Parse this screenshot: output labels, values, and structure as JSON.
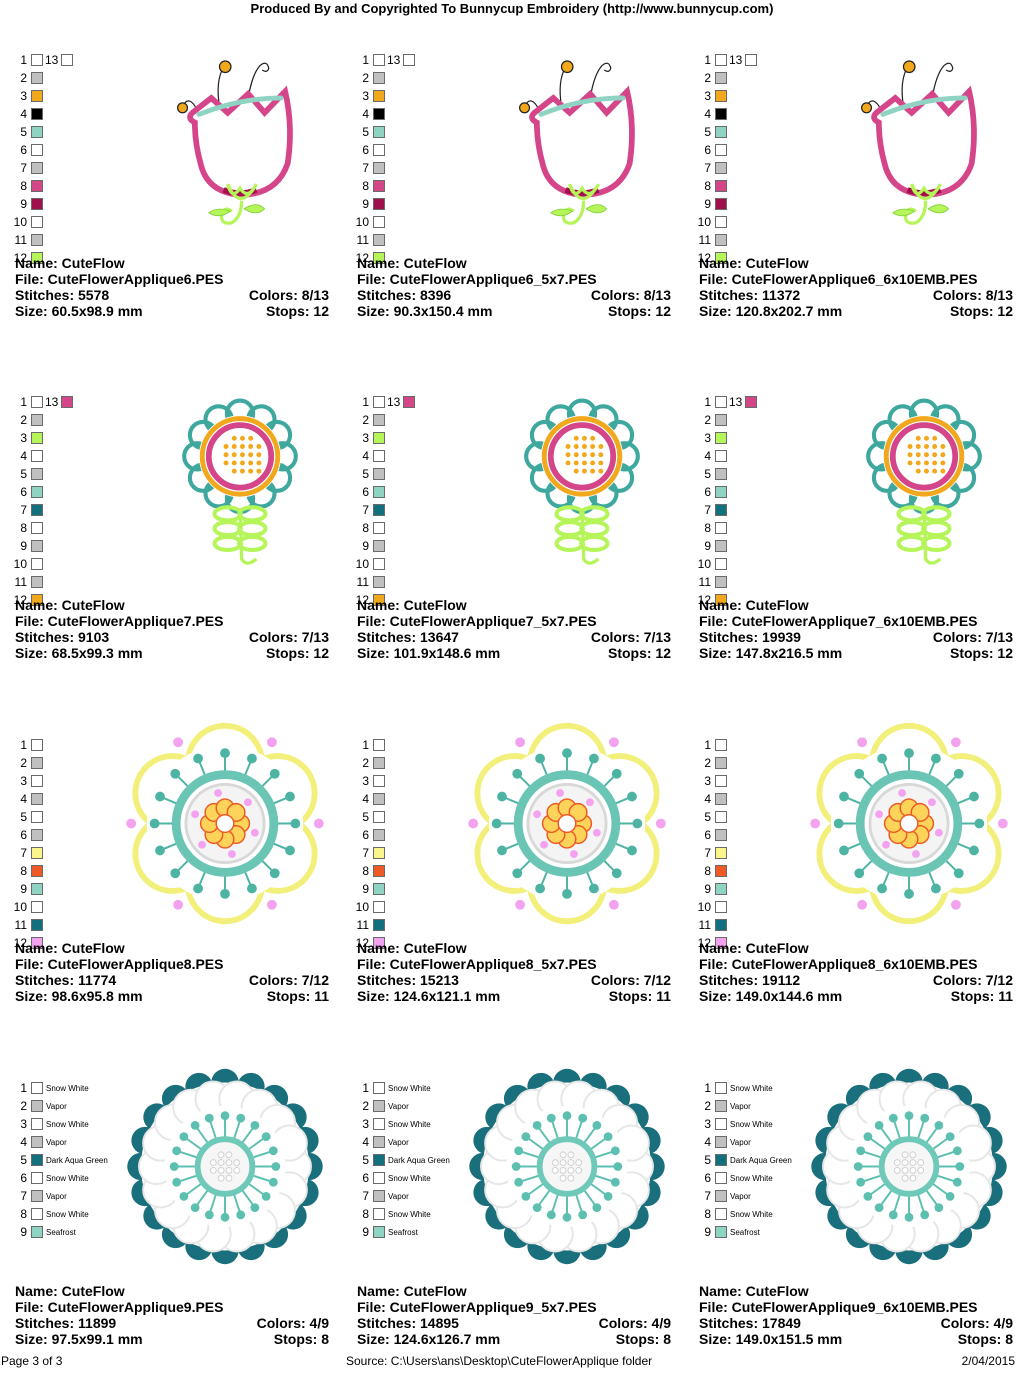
{
  "header": "Produced By and Copyrighted To Bunnycup Embroidery (http://www.bunnycup.com)",
  "palette": {
    "white": "#ffffff",
    "gray": "#c0c0c0",
    "gold": "#f2a81c",
    "black": "#000000",
    "aqua": "#8fd3c3",
    "pink": "#d4458a",
    "berry": "#a0104a",
    "lime": "#b6f55a",
    "teal": "#12707e",
    "yellow": "#fbf58a",
    "orange": "#ee5a25",
    "lilac": "#f3a2f0",
    "seafoam": "#8fd3c3"
  },
  "designs": [
    {
      "name_label": "Name: CuteFlow",
      "file_label": "File: CuteFlowerApplique6.PES",
      "stitches_label": "Stitches: 5578",
      "colors_label": "Colors: 8/13",
      "size_label": "Size: 60.5x98.9 mm",
      "stops_label": "Stops: 12",
      "flower": "tulip",
      "scale": 0.86,
      "swatches": [
        {
          "num": "1",
          "color": "white",
          "num13": "13",
          "color13": "white"
        },
        {
          "num": "2",
          "color": "gray"
        },
        {
          "num": "3",
          "color": "gold"
        },
        {
          "num": "4",
          "color": "black"
        },
        {
          "num": "5",
          "color": "aqua"
        },
        {
          "num": "6",
          "color": "white"
        },
        {
          "num": "7",
          "color": "gray"
        },
        {
          "num": "8",
          "color": "pink"
        },
        {
          "num": "9",
          "color": "berry"
        },
        {
          "num": "10",
          "color": "white"
        },
        {
          "num": "11",
          "color": "gray"
        },
        {
          "num": "12",
          "color": "lime"
        }
      ]
    },
    {
      "name_label": "Name: CuteFlow",
      "file_label": "File: CuteFlowerApplique6_5x7.PES",
      "stitches_label": "Stitches: 8396",
      "colors_label": "Colors: 8/13",
      "size_label": "Size: 90.3x150.4 mm",
      "stops_label": "Stops: 12",
      "flower": "tulip",
      "scale": 0.86,
      "swatches": [
        {
          "num": "1",
          "color": "white",
          "num13": "13",
          "color13": "white"
        },
        {
          "num": "2",
          "color": "gray"
        },
        {
          "num": "3",
          "color": "gold"
        },
        {
          "num": "4",
          "color": "black"
        },
        {
          "num": "5",
          "color": "aqua"
        },
        {
          "num": "6",
          "color": "white"
        },
        {
          "num": "7",
          "color": "gray"
        },
        {
          "num": "8",
          "color": "pink"
        },
        {
          "num": "9",
          "color": "berry"
        },
        {
          "num": "10",
          "color": "white"
        },
        {
          "num": "11",
          "color": "gray"
        },
        {
          "num": "12",
          "color": "lime"
        }
      ]
    },
    {
      "name_label": "Name: CuteFlow",
      "file_label": "File: CuteFlowerApplique6_6x10EMB.PES",
      "stitches_label": "Stitches: 11372",
      "colors_label": "Colors: 8/13",
      "size_label": "Size: 120.8x202.7 mm",
      "stops_label": "Stops: 12",
      "flower": "tulip",
      "scale": 0.86,
      "swatches": [
        {
          "num": "1",
          "color": "white",
          "num13": "13",
          "color13": "white"
        },
        {
          "num": "2",
          "color": "gray"
        },
        {
          "num": "3",
          "color": "gold"
        },
        {
          "num": "4",
          "color": "black"
        },
        {
          "num": "5",
          "color": "aqua"
        },
        {
          "num": "6",
          "color": "white"
        },
        {
          "num": "7",
          "color": "gray"
        },
        {
          "num": "8",
          "color": "pink"
        },
        {
          "num": "9",
          "color": "berry"
        },
        {
          "num": "10",
          "color": "white"
        },
        {
          "num": "11",
          "color": "gray"
        },
        {
          "num": "12",
          "color": "lime"
        }
      ]
    },
    {
      "name_label": "Name: CuteFlow",
      "file_label": "File: CuteFlowerApplique7.PES",
      "stitches_label": "Stitches: 9103",
      "colors_label": "Colors: 7/13",
      "size_label": "Size: 68.5x99.3 mm",
      "stops_label": "Stops: 12",
      "flower": "daisy",
      "scale": 0.86,
      "swatches": [
        {
          "num": "1",
          "color": "white",
          "num13": "13",
          "color13": "pink"
        },
        {
          "num": "2",
          "color": "gray"
        },
        {
          "num": "3",
          "color": "lime"
        },
        {
          "num": "4",
          "color": "white"
        },
        {
          "num": "5",
          "color": "gray"
        },
        {
          "num": "6",
          "color": "aqua"
        },
        {
          "num": "7",
          "color": "teal"
        },
        {
          "num": "8",
          "color": "white"
        },
        {
          "num": "9",
          "color": "gray"
        },
        {
          "num": "10",
          "color": "white"
        },
        {
          "num": "11",
          "color": "gray"
        },
        {
          "num": "12",
          "color": "gold"
        }
      ]
    },
    {
      "name_label": "Name: CuteFlow",
      "file_label": "File: CuteFlowerApplique7_5x7.PES",
      "stitches_label": "Stitches: 13647",
      "colors_label": "Colors: 7/13",
      "size_label": "Size: 101.9x148.6 mm",
      "stops_label": "Stops: 12",
      "flower": "daisy",
      "scale": 0.86,
      "swatches": [
        {
          "num": "1",
          "color": "white",
          "num13": "13",
          "color13": "pink"
        },
        {
          "num": "2",
          "color": "gray"
        },
        {
          "num": "3",
          "color": "lime"
        },
        {
          "num": "4",
          "color": "white"
        },
        {
          "num": "5",
          "color": "gray"
        },
        {
          "num": "6",
          "color": "aqua"
        },
        {
          "num": "7",
          "color": "teal"
        },
        {
          "num": "8",
          "color": "white"
        },
        {
          "num": "9",
          "color": "gray"
        },
        {
          "num": "10",
          "color": "white"
        },
        {
          "num": "11",
          "color": "gray"
        },
        {
          "num": "12",
          "color": "gold"
        }
      ]
    },
    {
      "name_label": "Name: CuteFlow",
      "file_label": "File: CuteFlowerApplique7_6x10EMB.PES",
      "stitches_label": "Stitches: 19939",
      "colors_label": "Colors: 7/13",
      "size_label": "Size: 147.8x216.5 mm",
      "stops_label": "Stops: 12",
      "flower": "daisy",
      "scale": 0.86,
      "swatches": [
        {
          "num": "1",
          "color": "white",
          "num13": "13",
          "color13": "pink"
        },
        {
          "num": "2",
          "color": "gray"
        },
        {
          "num": "3",
          "color": "lime"
        },
        {
          "num": "4",
          "color": "white"
        },
        {
          "num": "5",
          "color": "gray"
        },
        {
          "num": "6",
          "color": "aqua"
        },
        {
          "num": "7",
          "color": "teal"
        },
        {
          "num": "8",
          "color": "white"
        },
        {
          "num": "9",
          "color": "gray"
        },
        {
          "num": "10",
          "color": "white"
        },
        {
          "num": "11",
          "color": "gray"
        },
        {
          "num": "12",
          "color": "gold"
        }
      ]
    },
    {
      "name_label": "Name: CuteFlow",
      "file_label": "File: CuteFlowerApplique8.PES",
      "stitches_label": "Stitches: 11774",
      "colors_label": "Colors: 7/12",
      "size_label": "Size: 98.6x95.8 mm",
      "stops_label": "Stops: 11",
      "flower": "petal",
      "scale": 1,
      "swatches": [
        {
          "num": "1",
          "color": "white"
        },
        {
          "num": "2",
          "color": "gray"
        },
        {
          "num": "3",
          "color": "white"
        },
        {
          "num": "4",
          "color": "gray"
        },
        {
          "num": "5",
          "color": "white"
        },
        {
          "num": "6",
          "color": "gray"
        },
        {
          "num": "7",
          "color": "yellow"
        },
        {
          "num": "8",
          "color": "orange"
        },
        {
          "num": "9",
          "color": "aqua"
        },
        {
          "num": "10",
          "color": "white"
        },
        {
          "num": "11",
          "color": "teal"
        },
        {
          "num": "12",
          "color": "lilac"
        }
      ]
    },
    {
      "name_label": "Name: CuteFlow",
      "file_label": "File: CuteFlowerApplique8_5x7.PES",
      "stitches_label": "Stitches: 15213",
      "colors_label": "Colors: 7/12",
      "size_label": "Size: 124.6x121.1 mm",
      "stops_label": "Stops: 11",
      "flower": "petal",
      "scale": 1,
      "swatches": [
        {
          "num": "1",
          "color": "white"
        },
        {
          "num": "2",
          "color": "gray"
        },
        {
          "num": "3",
          "color": "white"
        },
        {
          "num": "4",
          "color": "gray"
        },
        {
          "num": "5",
          "color": "white"
        },
        {
          "num": "6",
          "color": "gray"
        },
        {
          "num": "7",
          "color": "yellow"
        },
        {
          "num": "8",
          "color": "orange"
        },
        {
          "num": "9",
          "color": "aqua"
        },
        {
          "num": "10",
          "color": "white"
        },
        {
          "num": "11",
          "color": "teal"
        },
        {
          "num": "12",
          "color": "lilac"
        }
      ]
    },
    {
      "name_label": "Name: CuteFlow",
      "file_label": "File: CuteFlowerApplique8_6x10EMB.PES",
      "stitches_label": "Stitches: 19112",
      "colors_label": "Colors: 7/12",
      "size_label": "Size: 149.0x144.6 mm",
      "stops_label": "Stops: 11",
      "flower": "petal",
      "scale": 1,
      "swatches": [
        {
          "num": "1",
          "color": "white"
        },
        {
          "num": "2",
          "color": "gray"
        },
        {
          "num": "3",
          "color": "white"
        },
        {
          "num": "4",
          "color": "gray"
        },
        {
          "num": "5",
          "color": "white"
        },
        {
          "num": "6",
          "color": "gray"
        },
        {
          "num": "7",
          "color": "yellow"
        },
        {
          "num": "8",
          "color": "orange"
        },
        {
          "num": "9",
          "color": "aqua"
        },
        {
          "num": "10",
          "color": "white"
        },
        {
          "num": "11",
          "color": "teal"
        },
        {
          "num": "12",
          "color": "lilac"
        }
      ]
    },
    {
      "name_label": "Name: CuteFlow",
      "file_label": "File: CuteFlowerApplique9.PES",
      "stitches_label": "Stitches: 11899",
      "colors_label": "Colors: 4/9",
      "size_label": "Size: 97.5x99.1 mm",
      "stops_label": "Stops: 8",
      "flower": "scallop",
      "scale": 1,
      "swatches": [
        {
          "num": "1",
          "color": "white",
          "name": "Snow White"
        },
        {
          "num": "2",
          "color": "gray",
          "name": "Vapor"
        },
        {
          "num": "3",
          "color": "white",
          "name": "Snow White"
        },
        {
          "num": "4",
          "color": "gray",
          "name": "Vapor"
        },
        {
          "num": "5",
          "color": "teal",
          "name": "Dark Aqua Green"
        },
        {
          "num": "6",
          "color": "white",
          "name": "Snow White"
        },
        {
          "num": "7",
          "color": "gray",
          "name": "Vapor"
        },
        {
          "num": "8",
          "color": "white",
          "name": "Snow White"
        },
        {
          "num": "9",
          "color": "seafoam",
          "name": "Seafrost"
        }
      ]
    },
    {
      "name_label": "Name: CuteFlow",
      "file_label": "File: CuteFlowerApplique9_5x7.PES",
      "stitches_label": "Stitches: 14895",
      "colors_label": "Colors: 4/9",
      "size_label": "Size: 124.6x126.7 mm",
      "stops_label": "Stops: 8",
      "flower": "scallop",
      "scale": 1,
      "swatches": [
        {
          "num": "1",
          "color": "white",
          "name": "Snow White"
        },
        {
          "num": "2",
          "color": "gray",
          "name": "Vapor"
        },
        {
          "num": "3",
          "color": "white",
          "name": "Snow White"
        },
        {
          "num": "4",
          "color": "gray",
          "name": "Vapor"
        },
        {
          "num": "5",
          "color": "teal",
          "name": "Dark Aqua Green"
        },
        {
          "num": "6",
          "color": "white",
          "name": "Snow White"
        },
        {
          "num": "7",
          "color": "gray",
          "name": "Vapor"
        },
        {
          "num": "8",
          "color": "white",
          "name": "Snow White"
        },
        {
          "num": "9",
          "color": "seafoam",
          "name": "Seafrost"
        }
      ]
    },
    {
      "name_label": "Name: CuteFlow",
      "file_label": "File: CuteFlowerApplique9_6x10EMB.PES",
      "stitches_label": "Stitches: 17849",
      "colors_label": "Colors: 4/9",
      "size_label": "Size: 149.0x151.5 mm",
      "stops_label": "Stops: 8",
      "flower": "scallop",
      "scale": 1,
      "swatches": [
        {
          "num": "1",
          "color": "white",
          "name": "Snow White"
        },
        {
          "num": "2",
          "color": "gray",
          "name": "Vapor"
        },
        {
          "num": "3",
          "color": "white",
          "name": "Snow White"
        },
        {
          "num": "4",
          "color": "gray",
          "name": "Vapor"
        },
        {
          "num": "5",
          "color": "teal",
          "name": "Dark Aqua Green"
        },
        {
          "num": "6",
          "color": "white",
          "name": "Snow White"
        },
        {
          "num": "7",
          "color": "gray",
          "name": "Vapor"
        },
        {
          "num": "8",
          "color": "white",
          "name": "Snow White"
        },
        {
          "num": "9",
          "color": "seafoam",
          "name": "Seafrost"
        }
      ]
    }
  ],
  "footer": {
    "page": "Page 3 of 3",
    "source": "Source: C:\\Users\\ans\\Desktop\\CuteFlowerApplique folder",
    "date": "2/04/2015"
  }
}
